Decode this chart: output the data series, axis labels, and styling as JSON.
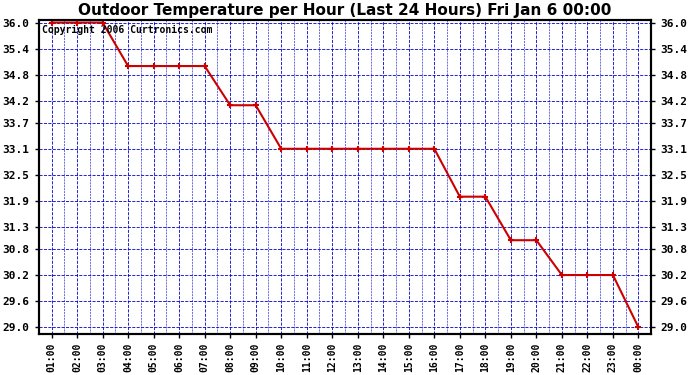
{
  "title": "Outdoor Temperature per Hour (Last 24 Hours) Fri Jan 6 00:00",
  "copyright": "Copyright 2006 Curtronics.com",
  "x_labels": [
    "01:00",
    "02:00",
    "03:00",
    "04:00",
    "05:00",
    "06:00",
    "07:00",
    "08:00",
    "09:00",
    "10:00",
    "11:00",
    "12:00",
    "13:00",
    "14:00",
    "15:00",
    "16:00",
    "17:00",
    "18:00",
    "19:00",
    "20:00",
    "21:00",
    "22:00",
    "23:00",
    "00:00"
  ],
  "y_values": [
    36.0,
    36.0,
    36.0,
    35.0,
    35.0,
    35.0,
    35.0,
    34.1,
    34.1,
    33.1,
    33.1,
    33.1,
    33.1,
    33.1,
    33.1,
    33.1,
    32.0,
    32.0,
    31.0,
    31.0,
    30.2,
    30.2,
    30.2,
    29.0
  ],
  "line_color": "#cc0000",
  "marker_color": "#000000",
  "bg_color": "#ffffff",
  "grid_color": "#0000cc",
  "title_fontsize": 11,
  "copyright_fontsize": 7,
  "y_min": 29.0,
  "y_max": 36.0,
  "y_ticks": [
    29.0,
    29.6,
    30.2,
    30.8,
    31.3,
    31.9,
    32.5,
    33.1,
    33.7,
    34.2,
    34.8,
    35.4,
    36.0
  ]
}
